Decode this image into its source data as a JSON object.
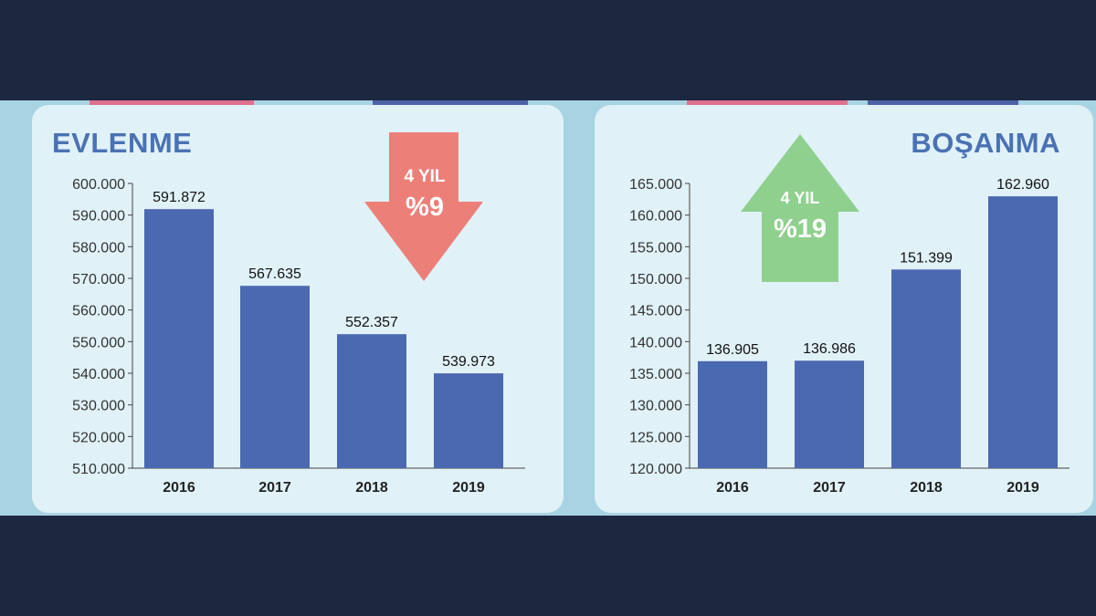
{
  "colors": {
    "background": "#1c2740",
    "strip": "#a8d3e2",
    "panel": "#e0f1f8",
    "bar": "#4a69b1",
    "title": "#4a72b3",
    "arrow_down": "#ec8079",
    "arrow_up": "#8fd08e"
  },
  "chart_data": [
    {
      "type": "bar",
      "title": "EVLENME",
      "categories": [
        "2016",
        "2017",
        "2018",
        "2019"
      ],
      "values": [
        591872,
        567635,
        552357,
        539973
      ],
      "value_labels": [
        "591.872",
        "567.635",
        "552.357",
        "539.973"
      ],
      "ylim": [
        510000,
        600000
      ],
      "yticks": [
        510000,
        520000,
        530000,
        540000,
        550000,
        560000,
        570000,
        580000,
        590000,
        600000
      ],
      "ytick_labels": [
        "510.000",
        "520.000",
        "530.000",
        "540.000",
        "550.000",
        "560.000",
        "570.000",
        "580.000",
        "590.000",
        "600.000"
      ],
      "xlabel": "",
      "ylabel": "",
      "grid": false,
      "annotation": {
        "direction": "down",
        "line1": "4 YIL",
        "line2": "%9"
      }
    },
    {
      "type": "bar",
      "title": "BOŞANMA",
      "categories": [
        "2016",
        "2017",
        "2018",
        "2019"
      ],
      "values": [
        136905,
        136986,
        151399,
        162960
      ],
      "value_labels": [
        "136.905",
        "136.986",
        "151.399",
        "162.960"
      ],
      "ylim": [
        120000,
        165000
      ],
      "yticks": [
        120000,
        125000,
        130000,
        135000,
        140000,
        145000,
        150000,
        155000,
        160000,
        165000
      ],
      "ytick_labels": [
        "120.000",
        "125.000",
        "130.000",
        "135.000",
        "140.000",
        "145.000",
        "150.000",
        "155.000",
        "160.000",
        "165.000"
      ],
      "xlabel": "",
      "ylabel": "",
      "grid": false,
      "annotation": {
        "direction": "up",
        "line1": "4 YIL",
        "line2": "%19"
      }
    }
  ]
}
